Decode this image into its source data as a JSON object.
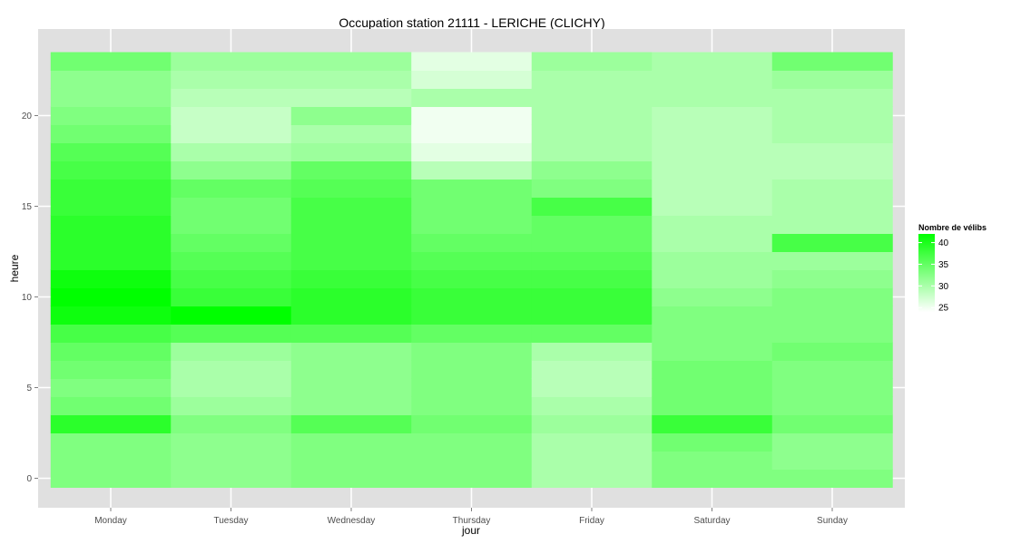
{
  "chart_data": {
    "type": "heatmap",
    "title": "Occupation station 21111 - LERICHE (CLICHY)",
    "xlabel": "jour",
    "ylabel": "heure",
    "x_categories": [
      "Monday",
      "Tuesday",
      "Wednesday",
      "Thursday",
      "Friday",
      "Saturday",
      "Sunday"
    ],
    "y_values": [
      0,
      1,
      2,
      3,
      4,
      5,
      6,
      7,
      8,
      9,
      10,
      11,
      12,
      13,
      14,
      15,
      16,
      17,
      18,
      19,
      20,
      21,
      22,
      23
    ],
    "y_ticks": [
      0,
      5,
      10,
      15,
      20
    ],
    "ylim": [
      -0.5,
      23.5
    ],
    "grid": true,
    "values": [
      [
        33,
        33,
        33,
        39,
        34,
        33,
        34,
        35,
        37,
        41,
        42,
        41,
        39,
        39,
        39,
        38,
        38,
        37,
        36,
        34,
        33,
        32,
        32,
        34
      ],
      [
        32,
        32,
        32,
        33,
        31,
        30,
        30,
        31,
        36,
        43,
        38,
        37,
        36,
        35,
        34,
        34,
        35,
        32,
        30,
        28,
        28,
        29,
        30,
        31
      ],
      [
        33,
        33,
        33,
        36,
        32,
        32,
        32,
        32,
        36,
        39,
        39,
        38,
        37,
        37,
        37,
        37,
        36,
        35,
        31,
        30,
        32,
        29,
        30,
        31
      ],
      [
        33,
        33,
        33,
        34,
        33,
        33,
        33,
        33,
        35,
        38,
        38,
        37,
        36,
        35,
        34,
        34,
        34,
        29,
        26,
        25,
        25,
        30,
        27,
        26
      ],
      [
        30,
        30,
        30,
        31,
        30,
        29,
        29,
        30,
        35,
        38,
        38,
        37,
        36,
        35,
        35,
        37,
        33,
        32,
        30,
        30,
        30,
        30,
        30,
        31
      ],
      [
        33,
        33,
        34,
        38,
        34,
        34,
        34,
        33,
        33,
        33,
        32,
        31,
        31,
        30,
        30,
        29,
        29,
        29,
        29,
        29,
        29,
        30,
        30,
        30
      ],
      [
        33,
        32,
        32,
        34,
        33,
        33,
        33,
        34,
        33,
        33,
        33,
        32,
        31,
        37,
        30,
        30,
        30,
        29,
        29,
        30,
        30,
        30,
        31,
        34
      ]
    ],
    "legend": {
      "title": "Nombre de vélibs",
      "ticks": [
        25,
        30,
        35,
        40
      ],
      "min": 24,
      "max": 42,
      "low_color": "#ffffff",
      "high_color": "#00ff00",
      "placement": "right"
    },
    "panel_color": "#e0e0e0",
    "grid_color": "#ffffff"
  }
}
